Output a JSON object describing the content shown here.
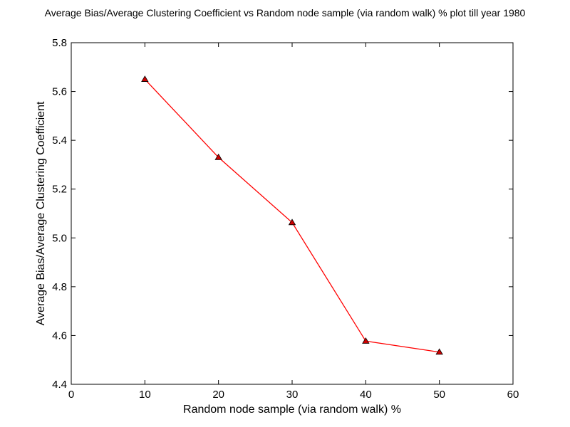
{
  "chart_data": {
    "type": "line",
    "title": "Average Bias/Average Clustering Coefficient vs Random node sample (via random walk) % plot till year 1980",
    "xlabel": "Random node sample (via random walk) %",
    "ylabel": "Average Bias/Average Clustering Coefficient",
    "xlim": [
      0,
      60
    ],
    "ylim": [
      4.4,
      5.8
    ],
    "xticks": [
      "0",
      "10",
      "20",
      "30",
      "40",
      "50",
      "60"
    ],
    "yticks": [
      "4.4",
      "4.6",
      "4.8",
      "5.0",
      "5.2",
      "5.4",
      "5.6",
      "5.8"
    ],
    "grid": false,
    "series": [
      {
        "x": [
          10,
          20,
          30,
          40,
          50
        ],
        "values": [
          5.65,
          5.33,
          5.063,
          4.577,
          4.532
        ],
        "color": "#ff0000",
        "marker": "triangle-up",
        "marker_color": "#cc0000"
      }
    ]
  }
}
